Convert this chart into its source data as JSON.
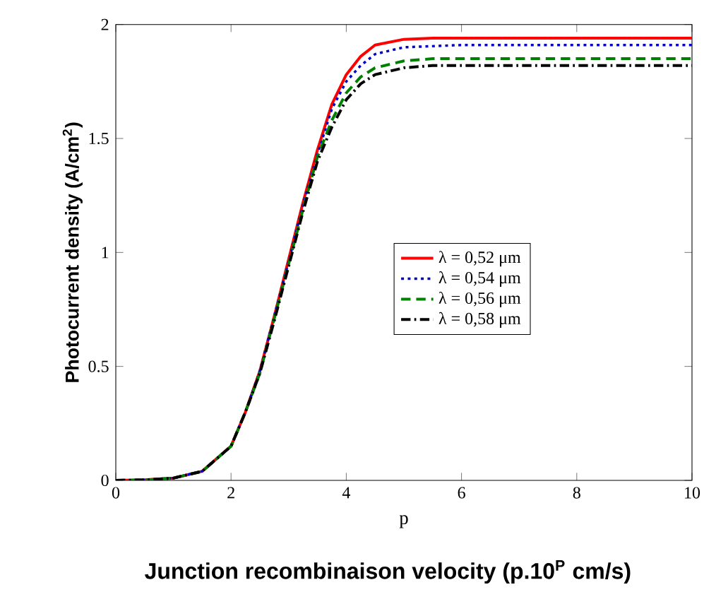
{
  "chart_data": {
    "type": "line",
    "xlabel": "p",
    "ylabel": "Photocurrent density (A/cm$^{2}$)",
    "annotations": [
      "Junction recombinaison velocity (p.10$^{P}$ cm/s)"
    ],
    "x": [
      0,
      0.5,
      1,
      1.5,
      2,
      2.25,
      2.5,
      2.75,
      3,
      3.25,
      3.5,
      3.75,
      4,
      4.25,
      4.5,
      5,
      5.5,
      6,
      7,
      8,
      9,
      10
    ],
    "xlim": [
      0,
      10
    ],
    "ylim": [
      0,
      2
    ],
    "xticks": [
      0,
      2,
      4,
      6,
      8,
      10
    ],
    "yticks": [
      0,
      0.5,
      1,
      1.5,
      2
    ],
    "grid": false,
    "legend": "right",
    "marker": "none",
    "series": [
      {
        "name": "λ  = 0,52 μm",
        "color": "#ff0000",
        "line_style": "solid",
        "values": [
          0,
          0.002,
          0.01,
          0.04,
          0.15,
          0.3,
          0.48,
          0.72,
          0.97,
          1.22,
          1.45,
          1.65,
          1.78,
          1.86,
          1.91,
          1.935,
          1.94,
          1.94,
          1.94,
          1.94,
          1.94,
          1.94
        ]
      },
      {
        "name": "λ  = 0,54 μm",
        "color": "#0000cc",
        "line_style": "dotted",
        "values": [
          0,
          0.002,
          0.01,
          0.04,
          0.15,
          0.3,
          0.48,
          0.72,
          0.96,
          1.21,
          1.43,
          1.63,
          1.75,
          1.82,
          1.87,
          1.9,
          1.905,
          1.91,
          1.91,
          1.91,
          1.91,
          1.91
        ]
      },
      {
        "name": "λ  = 0,56 μm",
        "color": "#008000",
        "line_style": "dashed",
        "values": [
          0,
          0.002,
          0.01,
          0.04,
          0.15,
          0.3,
          0.47,
          0.71,
          0.95,
          1.19,
          1.42,
          1.58,
          1.7,
          1.77,
          1.81,
          1.84,
          1.85,
          1.85,
          1.85,
          1.85,
          1.85,
          1.85
        ]
      },
      {
        "name": "λ = 0,58 μm",
        "color": "#000000",
        "line_style": "dashdot",
        "values": [
          0,
          0.002,
          0.01,
          0.04,
          0.15,
          0.3,
          0.47,
          0.7,
          0.94,
          1.18,
          1.4,
          1.55,
          1.67,
          1.74,
          1.78,
          1.81,
          1.82,
          1.82,
          1.82,
          1.82,
          1.82,
          1.82
        ]
      }
    ]
  }
}
